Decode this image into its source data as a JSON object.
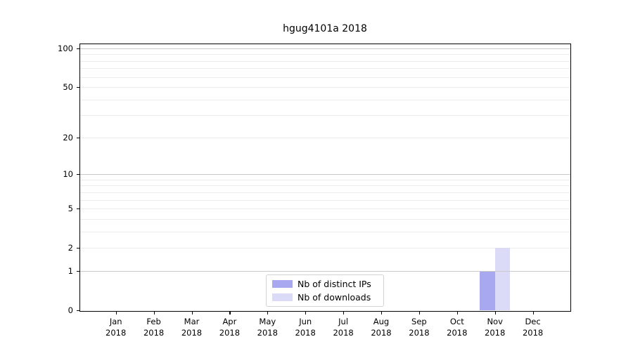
{
  "chart_data": {
    "type": "bar",
    "title": "hgug4101a 2018",
    "categories": [
      "Jan",
      "Feb",
      "Mar",
      "Apr",
      "May",
      "Jun",
      "Jul",
      "Aug",
      "Sep",
      "Oct",
      "Nov",
      "Dec"
    ],
    "category_year": "2018",
    "series": [
      {
        "name": "Nb of distinct IPs",
        "color": "#a8a8f0",
        "values": [
          0,
          0,
          0,
          0,
          0,
          0,
          0,
          0,
          0,
          0,
          1,
          0
        ]
      },
      {
        "name": "Nb of downloads",
        "color": "#dbdbf8",
        "values": [
          0,
          0,
          0,
          0,
          0,
          0,
          0,
          0,
          0,
          0,
          2,
          0
        ]
      }
    ],
    "xlabel": "",
    "ylabel": "",
    "yscale": "log1p",
    "ylim": [
      0,
      111
    ],
    "yticks": [
      0,
      1,
      2,
      5,
      10,
      20,
      50,
      100
    ],
    "major_gridlines": [
      1,
      10,
      100
    ],
    "minor_gridlines": [
      2,
      3,
      4,
      5,
      6,
      7,
      8,
      9,
      20,
      30,
      40,
      50,
      60,
      70,
      80,
      90
    ],
    "grid": true,
    "legend_position": "bottom-center"
  },
  "colors": {
    "axis": "#000000",
    "major_grid": "#c9c9c9",
    "minor_grid": "#ececec",
    "legend_border": "#d2d2d2",
    "text": "#000000",
    "background": "#ffffff"
  }
}
